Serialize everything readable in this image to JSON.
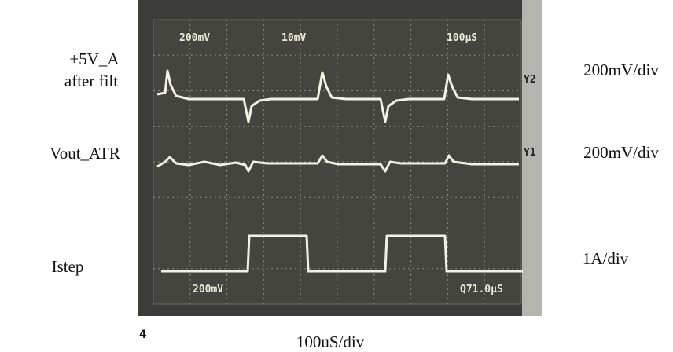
{
  "left_labels": [
    "+5V_A",
    "after filt",
    "Vout_ATR",
    "Istep"
  ],
  "right_labels": [
    "200mV/div",
    "200mV/div",
    "1A/div"
  ],
  "screen": {
    "top": [
      "200mV",
      "10mV",
      "100µS"
    ],
    "bottom": [
      "200mV",
      "Q71.0µS"
    ],
    "markers": [
      "Y2",
      "Y1"
    ]
  },
  "time_scale": "100uS/div",
  "page_number": "4"
}
